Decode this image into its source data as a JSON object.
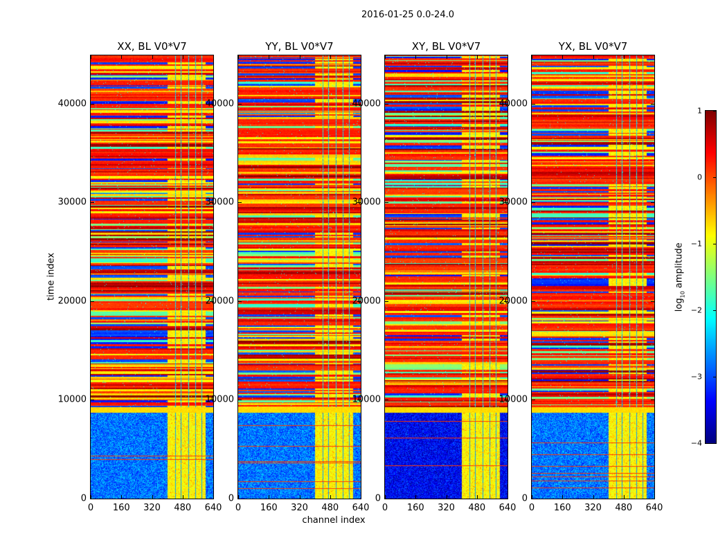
{
  "chart_data": {
    "type": "heatmap",
    "title": "2016-01-25 0.0-24.0",
    "xlabel": "channel index",
    "ylabel": "time index",
    "xlim": [
      0,
      640
    ],
    "ylim": [
      0,
      44900
    ],
    "xticks": [
      "0",
      "160",
      "320",
      "480",
      "640"
    ],
    "xtick_values": [
      0,
      160,
      320,
      480,
      640
    ],
    "yticks": [
      "0",
      "10000",
      "20000",
      "30000",
      "40000"
    ],
    "ytick_values": [
      0,
      10000,
      20000,
      30000,
      40000
    ],
    "panels": [
      {
        "title": "XX, BL V0*V7",
        "seed": 11
      },
      {
        "title": "YY, BL V0*V7",
        "seed": 23
      },
      {
        "title": "XY, BL V0*V7",
        "seed": 37
      },
      {
        "title": "YX, BL V0*V7",
        "seed": 41
      }
    ],
    "colorbar": {
      "label_prefix": "log",
      "label_sub": "10",
      "label_suffix": " amplitude",
      "colormap": "jet",
      "range": [
        -4,
        1
      ],
      "ticks": [
        "1",
        "0",
        "−1",
        "−2",
        "−3",
        "−4"
      ],
      "tick_values": [
        1,
        0,
        -1,
        -2,
        -3,
        -4
      ]
    },
    "grid": false
  }
}
